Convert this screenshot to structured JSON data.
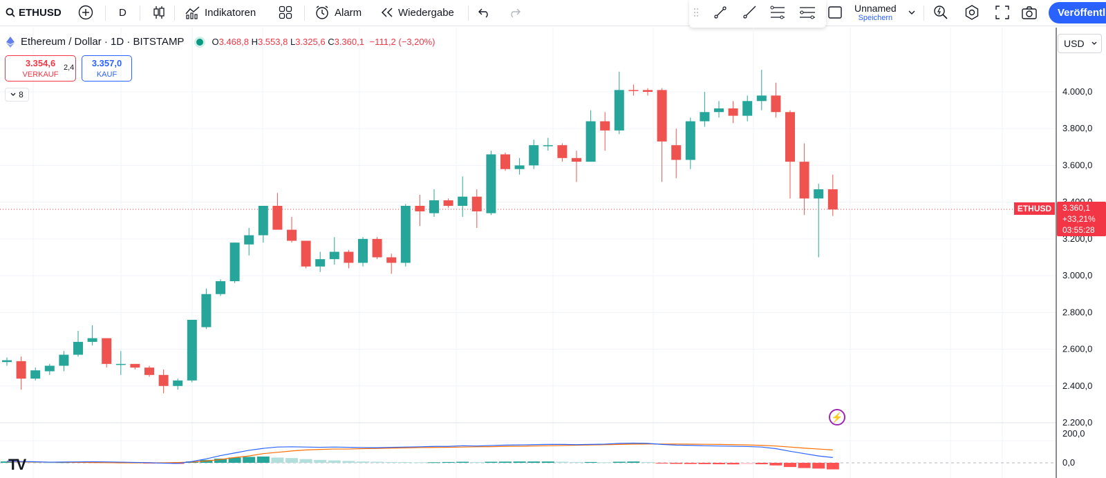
{
  "toolbar": {
    "symbol": "ETHUSD",
    "interval": "D",
    "indicators": "Indikatoren",
    "alarm": "Alarm",
    "replay": "Wiedergabe",
    "layout_name": "Unnamed",
    "layout_save": "Speichern",
    "publish": "Veröffentl"
  },
  "legend": {
    "title": "Ethereum / Dollar · 1D · BITSTAMP",
    "o_label": "O",
    "o": "3.468,8",
    "h_label": "H",
    "h": "3.553,8",
    "l_label": "L",
    "l": "3.325,6",
    "c_label": "C",
    "c": "3.360,1",
    "change": "−111,2 (−3,20%)"
  },
  "trade": {
    "sell_price": "3.354,6",
    "sell_label": "VERKAUF",
    "spread": "2,4",
    "buy_price": "3.357,0",
    "buy_label": "KAUF"
  },
  "indicators_count": "8",
  "currency": "USD",
  "axis": {
    "price_labels": [
      "4.000,0",
      "3.800,0",
      "3.600,0",
      "3.400,0",
      "3.200,0",
      "3.000,0",
      "2.800,0",
      "2.600,0",
      "2.400,0",
      "2.200,0"
    ],
    "osc_labels": [
      "200,0",
      "0,0"
    ]
  },
  "last_price": {
    "symbol_tag": "ETHUSD",
    "price": "3.360,1",
    "change_pct": "+33,21%",
    "countdown": "03:55:28"
  },
  "colors": {
    "up": "#26a69a",
    "down": "#ef5350",
    "macd": "#2962ff",
    "signal": "#ff6d00"
  },
  "chart_data": {
    "type": "candlestick",
    "ylim": [
      2150,
      4150
    ],
    "candles": [
      [
        2530,
        2555,
        2510,
        2540
      ],
      [
        2535,
        2560,
        2380,
        2440
      ],
      [
        2440,
        2500,
        2430,
        2485
      ],
      [
        2480,
        2520,
        2460,
        2510
      ],
      [
        2510,
        2590,
        2480,
        2570
      ],
      [
        2570,
        2700,
        2560,
        2640
      ],
      [
        2640,
        2730,
        2620,
        2660
      ],
      [
        2660,
        2660,
        2500,
        2520
      ],
      [
        2520,
        2590,
        2460,
        2520
      ],
      [
        2520,
        2520,
        2490,
        2500
      ],
      [
        2500,
        2510,
        2450,
        2460
      ],
      [
        2460,
        2490,
        2360,
        2400
      ],
      [
        2400,
        2440,
        2380,
        2430
      ],
      [
        2430,
        2760,
        2420,
        2760
      ],
      [
        2720,
        2930,
        2710,
        2900
      ],
      [
        2900,
        2980,
        2890,
        2970
      ],
      [
        2970,
        3180,
        2960,
        3180
      ],
      [
        3170,
        3260,
        3110,
        3220
      ],
      [
        3220,
        3380,
        3180,
        3380
      ],
      [
        3380,
        3450,
        3270,
        3250
      ],
      [
        3250,
        3320,
        3180,
        3190
      ],
      [
        3190,
        3190,
        3040,
        3050
      ],
      [
        3050,
        3130,
        3020,
        3090
      ],
      [
        3090,
        3210,
        3060,
        3130
      ],
      [
        3130,
        3140,
        3040,
        3070
      ],
      [
        3070,
        3210,
        3050,
        3200
      ],
      [
        3200,
        3210,
        3090,
        3100
      ],
      [
        3100,
        3120,
        3010,
        3070
      ],
      [
        3070,
        3390,
        3050,
        3380
      ],
      [
        3380,
        3440,
        3270,
        3350
      ],
      [
        3340,
        3470,
        3320,
        3410
      ],
      [
        3410,
        3420,
        3370,
        3380
      ],
      [
        3380,
        3540,
        3320,
        3430
      ],
      [
        3430,
        3470,
        3260,
        3350
      ],
      [
        3340,
        3680,
        3330,
        3660
      ],
      [
        3660,
        3670,
        3570,
        3580
      ],
      [
        3580,
        3640,
        3550,
        3600
      ],
      [
        3600,
        3740,
        3580,
        3710
      ],
      [
        3710,
        3750,
        3680,
        3710
      ],
      [
        3710,
        3720,
        3620,
        3640
      ],
      [
        3640,
        3680,
        3510,
        3620
      ],
      [
        3620,
        3900,
        3620,
        3840
      ],
      [
        3840,
        3890,
        3680,
        3790
      ],
      [
        3790,
        4110,
        3770,
        4010
      ],
      [
        4010,
        4040,
        3980,
        4005
      ],
      [
        4010,
        4020,
        3980,
        4000
      ],
      [
        4010,
        4020,
        3510,
        3730
      ],
      [
        3710,
        3800,
        3530,
        3630
      ],
      [
        3630,
        3860,
        3580,
        3840
      ],
      [
        3840,
        4000,
        3810,
        3890
      ],
      [
        3890,
        3950,
        3860,
        3910
      ],
      [
        3910,
        3950,
        3830,
        3870
      ],
      [
        3870,
        3980,
        3840,
        3950
      ],
      [
        3950,
        4120,
        3900,
        3980
      ],
      [
        3980,
        4050,
        3860,
        3890
      ],
      [
        3890,
        3900,
        3420,
        3620
      ],
      [
        3620,
        3720,
        3330,
        3420
      ],
      [
        3420,
        3500,
        3100,
        3470
      ],
      [
        3470,
        3550,
        3325,
        3360
      ]
    ],
    "macd": [
      12,
      10,
      8,
      5,
      6,
      7,
      8,
      7,
      5,
      3,
      1,
      -3,
      -5,
      10,
      30,
      55,
      75,
      95,
      110,
      120,
      122,
      120,
      118,
      120,
      118,
      116,
      115,
      118,
      120,
      122,
      125,
      125,
      130,
      128,
      132,
      135,
      136,
      138,
      140,
      140,
      138,
      140,
      142,
      148,
      150,
      148,
      140,
      135,
      133,
      130,
      128,
      126,
      124,
      120,
      108,
      88,
      70,
      52,
      40
    ],
    "signal": [
      8,
      7,
      6,
      5,
      4,
      3,
      2,
      1,
      0,
      0,
      0,
      0,
      2,
      6,
      14,
      25,
      40,
      52,
      70,
      80,
      90,
      98,
      102,
      105,
      105,
      108,
      110,
      112,
      114,
      116,
      117,
      118,
      120,
      122,
      123,
      125,
      126,
      128,
      130,
      132,
      134,
      136,
      138,
      140,
      142,
      143,
      143,
      143,
      142,
      141,
      140,
      138,
      136,
      133,
      128,
      120,
      112,
      105,
      98
    ],
    "hist": [
      10,
      6,
      5,
      2,
      4,
      5,
      6,
      4,
      2,
      1,
      -2,
      -5,
      -8,
      10,
      22,
      32,
      40,
      45,
      48,
      40,
      36,
      28,
      22,
      18,
      14,
      10,
      8,
      6,
      5,
      4,
      4,
      6,
      8,
      6,
      8,
      9,
      10,
      10,
      10,
      8,
      6,
      6,
      4,
      8,
      10,
      6,
      -3,
      -8,
      -9,
      -10,
      -11,
      -12,
      -11,
      -11,
      -20,
      -32,
      -40,
      -44,
      -50
    ]
  }
}
